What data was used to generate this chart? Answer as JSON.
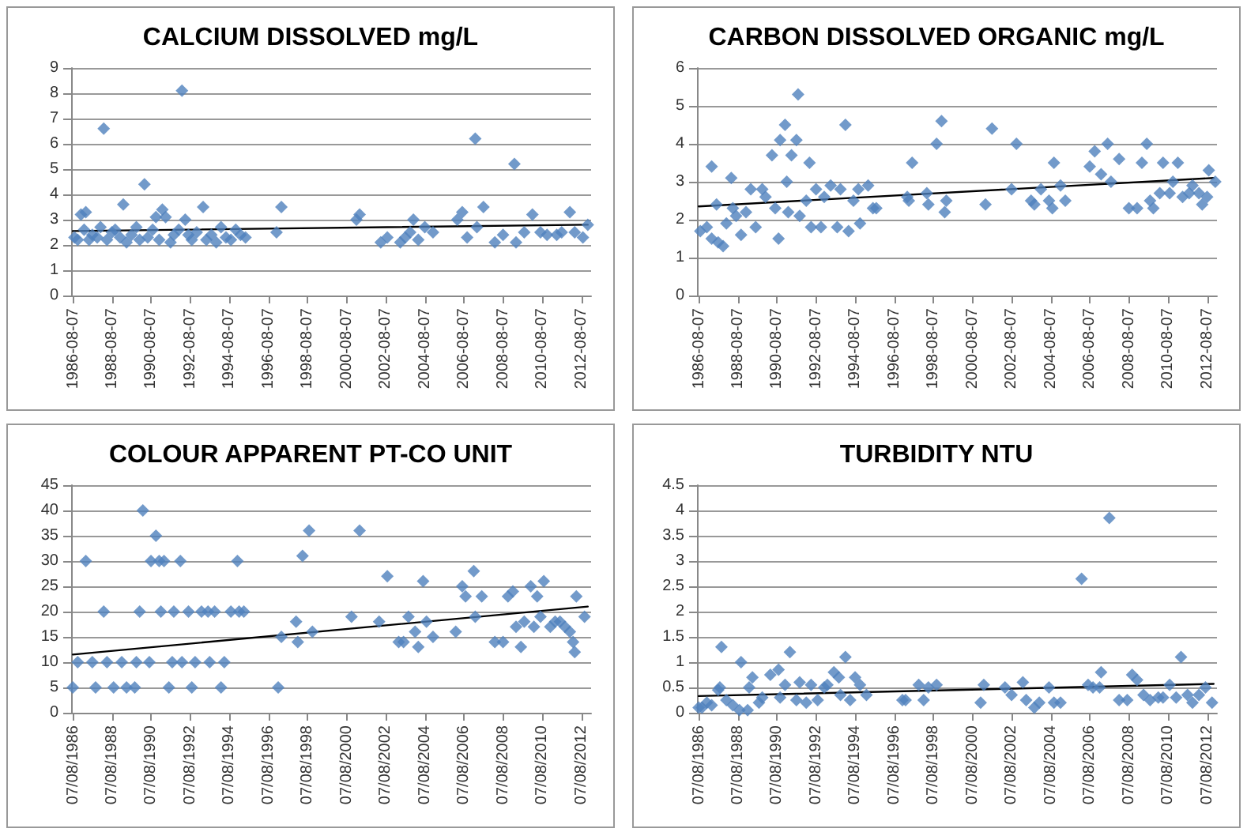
{
  "chart_data": [
    {
      "type": "scatter",
      "title": "CALCIUM DISSOLVED mg/L",
      "xlim": [
        "1986-07-01",
        "2013-02-01"
      ],
      "xticks": [
        "1986-08-07",
        "1988-08-07",
        "1990-08-07",
        "1992-08-07",
        "1994-08-07",
        "1996-08-07",
        "1998-08-07",
        "2000-08-07",
        "2002-08-07",
        "2004-08-07",
        "2006-08-07",
        "2008-08-07",
        "2010-08-07",
        "2012-08-07"
      ],
      "ylim": [
        0,
        9
      ],
      "yticks": [
        0,
        1,
        2,
        3,
        4,
        5,
        6,
        7,
        8,
        9
      ],
      "grid": "y",
      "series": [
        {
          "type": "scatter",
          "color": "#4f81bd",
          "marker": "diamond",
          "x": [
            "1986-09",
            "1986-11",
            "1987-01",
            "1987-03",
            "1987-04",
            "1987-06",
            "1987-08",
            "1987-11",
            "1988-01",
            "1988-03",
            "1988-05",
            "1988-08",
            "1988-10",
            "1989-01",
            "1989-03",
            "1989-05",
            "1989-08",
            "1989-11",
            "1990-01",
            "1990-04",
            "1990-06",
            "1990-09",
            "1990-11",
            "1991-01",
            "1991-03",
            "1991-05",
            "1991-08",
            "1991-10",
            "1992-01",
            "1992-03",
            "1992-05",
            "1992-07",
            "1992-09",
            "1992-12",
            "1993-04",
            "1993-06",
            "1993-09",
            "1993-12",
            "1994-03",
            "1994-06",
            "1994-09",
            "1994-12",
            "1995-03",
            "1995-06",
            "1997-01",
            "1997-04",
            "2001-02",
            "2001-04",
            "2002-05",
            "2002-09",
            "2003-05",
            "2003-08",
            "2003-11",
            "2004-01",
            "2004-04",
            "2004-08",
            "2005-01",
            "2006-04",
            "2006-07",
            "2006-10",
            "2007-03",
            "2007-04",
            "2007-08",
            "2008-03",
            "2008-08",
            "2009-03",
            "2009-04",
            "2009-09",
            "2010-02",
            "2010-07",
            "2010-11",
            "2011-05",
            "2011-08",
            "2012-01",
            "2012-04",
            "2012-09",
            "2012-12"
          ],
          "values": [
            2.3,
            2.2,
            3.2,
            2.6,
            3.3,
            2.2,
            2.4,
            2.3,
            2.7,
            6.6,
            2.2,
            2.5,
            2.6,
            2.3,
            3.6,
            2.1,
            2.4,
            2.7,
            2.2,
            4.4,
            2.3,
            2.6,
            3.1,
            2.2,
            3.4,
            3.1,
            2.1,
            2.4,
            2.6,
            8.1,
            3.0,
            2.4,
            2.2,
            2.5,
            3.5,
            2.2,
            2.4,
            2.1,
            2.7,
            2.3,
            2.2,
            2.6,
            2.4,
            2.3,
            2.5,
            3.5,
            3.0,
            3.2,
            2.1,
            2.3,
            2.1,
            2.3,
            2.5,
            3.0,
            2.2,
            2.7,
            2.5,
            3.0,
            3.3,
            2.3,
            6.2,
            2.7,
            3.5,
            2.1,
            2.4,
            5.2,
            2.1,
            2.5,
            3.2,
            2.5,
            2.4,
            2.4,
            2.5,
            3.3,
            2.5,
            2.3,
            2.8
          ]
        },
        {
          "type": "line",
          "color": "#000000",
          "marker": "none",
          "x": [
            "1986-08",
            "2012-12"
          ],
          "values": [
            2.55,
            2.8
          ]
        }
      ]
    },
    {
      "type": "scatter",
      "title": "CARBON DISSOLVED ORGANIC mg/L",
      "xlim": [
        "1986-07-01",
        "2013-02-01"
      ],
      "xticks": [
        "1986-08-07",
        "1988-08-07",
        "1990-08-07",
        "1992-08-07",
        "1994-08-07",
        "1996-08-07",
        "1998-08-07",
        "2000-08-07",
        "2002-08-07",
        "2004-08-07",
        "2006-08-07",
        "2008-08-07",
        "2010-08-07",
        "2012-08-07"
      ],
      "ylim": [
        0,
        6
      ],
      "yticks": [
        0,
        1,
        2,
        3,
        4,
        5,
        6
      ],
      "grid": "y",
      "series": [
        {
          "type": "scatter",
          "color": "#4f81bd",
          "marker": "diamond",
          "x": [
            "1986-09",
            "1987-01",
            "1987-04",
            "1987-04",
            "1987-07",
            "1987-08",
            "1987-11",
            "1988-01",
            "1988-04",
            "1988-05",
            "1988-07",
            "1988-10",
            "1989-01",
            "1989-04",
            "1989-07",
            "1989-11",
            "1990-01",
            "1990-05",
            "1990-07",
            "1990-09",
            "1990-10",
            "1991-01",
            "1991-02",
            "1991-03",
            "1991-05",
            "1991-08",
            "1991-09",
            "1991-10",
            "1992-02",
            "1992-04",
            "1992-05",
            "1992-08",
            "1992-11",
            "1993-01",
            "1993-05",
            "1993-09",
            "1993-11",
            "1994-02",
            "1994-04",
            "1994-07",
            "1994-10",
            "1994-11",
            "1995-04",
            "1995-07",
            "1995-09",
            "1997-04",
            "1997-05",
            "1997-07",
            "1998-04",
            "1998-05",
            "1998-10",
            "1999-01",
            "1999-03",
            "1999-04",
            "2001-04",
            "2001-08",
            "2002-08",
            "2002-11",
            "2003-08",
            "2003-10",
            "2004-02",
            "2004-07",
            "2004-09",
            "2004-10",
            "2005-02",
            "2005-05",
            "2006-08",
            "2006-11",
            "2007-03",
            "2007-07",
            "2007-09",
            "2008-02",
            "2008-08",
            "2009-01",
            "2009-04",
            "2009-07",
            "2009-09",
            "2009-11",
            "2010-03",
            "2010-05",
            "2010-09",
            "2010-11",
            "2011-02",
            "2011-05",
            "2011-09",
            "2011-11",
            "2012-03",
            "2012-05",
            "2012-08",
            "2012-09",
            "2013-01"
          ],
          "values": [
            1.7,
            1.8,
            3.4,
            1.5,
            2.4,
            1.4,
            1.3,
            1.9,
            3.1,
            2.3,
            2.1,
            1.6,
            2.2,
            2.8,
            1.8,
            2.8,
            2.6,
            3.7,
            2.3,
            1.5,
            4.1,
            4.5,
            3.0,
            2.2,
            3.7,
            4.1,
            5.3,
            2.1,
            2.5,
            3.5,
            1.8,
            2.8,
            1.8,
            2.6,
            2.9,
            1.8,
            2.8,
            4.5,
            1.7,
            2.5,
            2.8,
            1.9,
            2.9,
            2.3,
            2.3,
            2.6,
            2.5,
            3.5,
            2.7,
            2.4,
            4.0,
            4.6,
            2.2,
            2.5,
            2.4,
            4.4,
            2.8,
            4.0,
            2.5,
            2.4,
            2.8,
            2.5,
            2.3,
            3.5,
            2.9,
            2.5,
            3.4,
            3.8,
            3.2,
            4.0,
            3.0,
            3.6,
            2.3,
            2.3,
            3.5,
            4.0,
            2.5,
            2.3,
            2.7,
            3.5,
            2.7,
            3.0,
            3.5,
            2.6,
            2.7,
            2.9,
            2.7,
            2.4,
            2.6,
            3.3,
            3.0
          ]
        },
        {
          "type": "line",
          "color": "#000000",
          "marker": "none",
          "x": [
            "1986-08",
            "2012-12"
          ],
          "values": [
            2.35,
            3.1
          ]
        }
      ]
    },
    {
      "type": "scatter",
      "title": "COLOUR APPARENT PT-CO UNIT",
      "xlim": [
        "1986-07-01",
        "2013-02-01"
      ],
      "xticks": [
        {
          "value": "1986-08-07",
          "label": "07/08/1986"
        },
        {
          "value": "1988-08-07",
          "label": "07/08/1988"
        },
        {
          "value": "1990-08-07",
          "label": "07/08/1990"
        },
        {
          "value": "1992-08-07",
          "label": "07/08/1992"
        },
        {
          "value": "1994-08-07",
          "label": "07/08/1994"
        },
        {
          "value": "1996-08-07",
          "label": "07/08/1996"
        },
        {
          "value": "1998-08-07",
          "label": "07/08/1998"
        },
        {
          "value": "2000-08-07",
          "label": "07/08/2000"
        },
        {
          "value": "2002-08-07",
          "label": "07/08/2002"
        },
        {
          "value": "2004-08-07",
          "label": "07/08/2004"
        },
        {
          "value": "2006-08-07",
          "label": "07/08/2006"
        },
        {
          "value": "2008-08-07",
          "label": "07/08/2008"
        },
        {
          "value": "2010-08-07",
          "label": "07/08/2010"
        },
        {
          "value": "2012-08-07",
          "label": "07/08/2012"
        }
      ],
      "ylim": [
        0,
        45
      ],
      "yticks": [
        0,
        5,
        10,
        15,
        20,
        25,
        30,
        35,
        40,
        45
      ],
      "grid": "y",
      "series": [
        {
          "type": "scatter",
          "color": "#4f81bd",
          "marker": "diamond",
          "x": [
            "1986-08",
            "1986-11",
            "1987-04",
            "1987-08",
            "1987-10",
            "1988-03",
            "1988-05",
            "1988-09",
            "1989-02",
            "1989-05",
            "1989-10",
            "1989-11",
            "1990-01",
            "1990-03",
            "1990-07",
            "1990-08",
            "1990-11",
            "1991-01",
            "1991-02",
            "1991-04",
            "1991-07",
            "1991-09",
            "1991-10",
            "1992-02",
            "1992-03",
            "1992-07",
            "1992-09",
            "1992-11",
            "1993-03",
            "1993-07",
            "1993-08",
            "1993-11",
            "1994-03",
            "1994-05",
            "1994-09",
            "1995-01",
            "1995-02",
            "1995-05",
            "1997-02",
            "1997-04",
            "1998-01",
            "1998-02",
            "1998-05",
            "1998-09",
            "1998-11",
            "2000-11",
            "2001-04",
            "2002-04",
            "2002-09",
            "2003-04",
            "2003-07",
            "2003-10",
            "2004-02",
            "2004-04",
            "2004-07",
            "2004-09",
            "2005-01",
            "2006-03",
            "2006-07",
            "2006-09",
            "2007-02",
            "2007-03",
            "2007-07",
            "2008-03",
            "2008-08",
            "2008-11",
            "2009-02",
            "2009-04",
            "2009-07",
            "2009-09",
            "2010-01",
            "2010-03",
            "2010-05",
            "2010-07",
            "2010-09",
            "2011-01",
            "2011-04",
            "2011-07",
            "2011-10",
            "2012-01",
            "2012-03",
            "2012-04",
            "2012-05",
            "2012-10"
          ],
          "values": [
            5,
            10,
            30,
            10,
            5,
            20,
            10,
            5,
            10,
            5,
            5,
            10,
            20,
            40,
            10,
            30,
            35,
            30,
            20,
            30,
            5,
            10,
            20,
            30,
            10,
            20,
            5,
            10,
            20,
            20,
            10,
            20,
            5,
            10,
            20,
            30,
            20,
            20,
            5,
            15,
            18,
            14,
            31,
            36,
            16,
            19,
            36,
            18,
            27,
            14,
            14,
            19,
            16,
            13,
            26,
            18,
            15,
            16,
            25,
            23,
            28,
            19,
            23,
            14,
            14,
            23,
            24,
            17,
            13,
            18,
            25,
            17,
            23,
            19,
            26,
            17,
            18,
            18,
            17,
            16,
            14,
            12,
            23,
            19
          ]
        },
        {
          "type": "line",
          "color": "#000000",
          "marker": "none",
          "x": [
            "1986-08",
            "2012-12"
          ],
          "values": [
            11.5,
            21
          ]
        }
      ]
    },
    {
      "type": "scatter",
      "title": "TURBIDITY NTU",
      "xlim": [
        "1986-07-01",
        "2013-02-01"
      ],
      "xticks": [
        {
          "value": "1986-08-07",
          "label": "07/08/1986"
        },
        {
          "value": "1988-08-07",
          "label": "07/08/1988"
        },
        {
          "value": "1990-08-07",
          "label": "07/08/1990"
        },
        {
          "value": "1992-08-07",
          "label": "07/08/1992"
        },
        {
          "value": "1994-08-07",
          "label": "07/08/1994"
        },
        {
          "value": "1996-08-07",
          "label": "07/08/1996"
        },
        {
          "value": "1998-08-07",
          "label": "07/08/1998"
        },
        {
          "value": "2000-08-07",
          "label": "07/08/2000"
        },
        {
          "value": "2002-08-07",
          "label": "07/08/2002"
        },
        {
          "value": "2004-08-07",
          "label": "07/08/2004"
        },
        {
          "value": "2006-08-07",
          "label": "07/08/2006"
        },
        {
          "value": "2008-08-07",
          "label": "07/08/2008"
        },
        {
          "value": "2010-08-07",
          "label": "07/08/2010"
        },
        {
          "value": "2012-08-07",
          "label": "07/08/2012"
        }
      ],
      "ylim": [
        0,
        4.5
      ],
      "yticks": [
        0,
        0.5,
        1,
        1.5,
        2,
        2.5,
        3,
        3.5,
        4,
        4.5
      ],
      "grid": "y",
      "series": [
        {
          "type": "scatter",
          "color": "#4f81bd",
          "marker": "diamond",
          "x": [
            "1986-08",
            "1986-10",
            "1987-01",
            "1987-04",
            "1987-08",
            "1987-09",
            "1987-10",
            "1988-01",
            "1988-05",
            "1988-09",
            "1988-10",
            "1989-02",
            "1989-03",
            "1989-05",
            "1989-09",
            "1989-11",
            "1990-04",
            "1990-09",
            "1990-10",
            "1991-01",
            "1991-04",
            "1991-08",
            "1991-10",
            "1992-02",
            "1992-05",
            "1992-09",
            "1993-01",
            "1993-03",
            "1993-07",
            "1993-10",
            "1993-11",
            "1994-02",
            "1994-05",
            "1994-08",
            "1994-11",
            "1995-03",
            "1997-01",
            "1997-03",
            "1997-11",
            "1998-02",
            "1998-05",
            "1998-10",
            "2001-01",
            "2001-03",
            "2002-04",
            "2002-08",
            "2003-03",
            "2003-05",
            "2003-10",
            "2004-01",
            "2004-07",
            "2004-10",
            "2005-02",
            "2006-03",
            "2006-07",
            "2006-10",
            "2007-02",
            "2007-03",
            "2007-08",
            "2008-02",
            "2008-07",
            "2008-10",
            "2009-01",
            "2009-05",
            "2009-09",
            "2010-02",
            "2010-05",
            "2010-09",
            "2011-01",
            "2011-04",
            "2011-08",
            "2011-11",
            "2012-03",
            "2012-07",
            "2012-11"
          ],
          "values": [
            0.1,
            0.1,
            0.2,
            0.15,
            0.45,
            0.5,
            1.3,
            0.25,
            0.15,
            0.05,
            1.0,
            0.05,
            0.5,
            0.7,
            0.2,
            0.3,
            0.75,
            0.85,
            0.3,
            0.55,
            1.2,
            0.25,
            0.6,
            0.2,
            0.55,
            0.25,
            0.5,
            0.55,
            0.8,
            0.7,
            0.35,
            1.1,
            0.25,
            0.7,
            0.55,
            0.35,
            0.25,
            0.25,
            0.55,
            0.25,
            0.5,
            0.55,
            0.2,
            0.55,
            0.5,
            0.35,
            0.6,
            0.25,
            0.1,
            0.2,
            0.5,
            0.2,
            0.2,
            2.65,
            0.55,
            0.5,
            0.5,
            0.8,
            3.85,
            0.25,
            0.25,
            0.75,
            0.65,
            0.35,
            0.25,
            0.3,
            0.3,
            0.55,
            0.3,
            1.1,
            0.35,
            0.2,
            0.35,
            0.5,
            0.2
          ]
        },
        {
          "type": "line",
          "color": "#000000",
          "marker": "none",
          "x": [
            "1986-08",
            "2012-12"
          ],
          "values": [
            0.33,
            0.57
          ]
        }
      ]
    }
  ]
}
